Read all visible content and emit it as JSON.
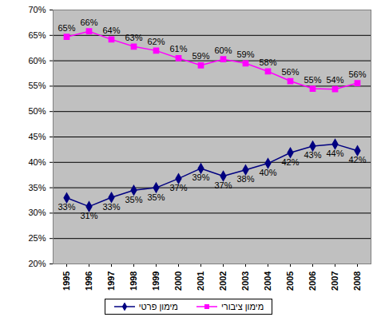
{
  "chart_data": {
    "type": "line",
    "x": [
      "1995",
      "1996",
      "1997",
      "1998",
      "1999",
      "2000",
      "2001",
      "2002",
      "2003",
      "2004",
      "2005",
      "2006",
      "2007",
      "2008"
    ],
    "series": [
      {
        "name": "מימון פרטי",
        "color": "#000080",
        "marker": "diamond",
        "values": [
          33.0,
          31.3,
          33.1,
          34.5,
          35.0,
          36.8,
          38.8,
          37.3,
          38.5,
          39.8,
          41.9,
          43.2,
          43.6,
          42.3
        ],
        "value_labels": [
          "33%",
          "31%",
          "33%",
          "35%",
          "35%",
          "37%",
          "39%",
          "37%",
          "38%",
          "40%",
          "42%",
          "43%",
          "44%",
          "42%"
        ]
      },
      {
        "name": "מימון ציבורי",
        "color": "#ff00ff",
        "marker": "square",
        "values": [
          64.7,
          65.8,
          64.2,
          62.8,
          62.0,
          60.5,
          59.1,
          60.3,
          59.5,
          57.9,
          56.0,
          54.5,
          54.4,
          55.6
        ],
        "value_labels": [
          "65%",
          "66%",
          "64%",
          "63%",
          "62%",
          "61%",
          "59%",
          "60%",
          "59%",
          "58%",
          "56%",
          "55%",
          "54%",
          "56%"
        ]
      }
    ],
    "ylim": [
      20,
      70
    ],
    "yticks": [
      {
        "value": 20,
        "label": "20%"
      },
      {
        "value": 25,
        "label": "25%"
      },
      {
        "value": 30,
        "label": "30%"
      },
      {
        "value": 35,
        "label": "35%"
      },
      {
        "value": 40,
        "label": "40%"
      },
      {
        "value": 45,
        "label": "45%"
      },
      {
        "value": 50,
        "label": "50%"
      },
      {
        "value": 55,
        "label": "55%"
      },
      {
        "value": 60,
        "label": "60%"
      },
      {
        "value": 65,
        "label": "65%"
      },
      {
        "value": 70,
        "label": "70%"
      }
    ],
    "grid": true,
    "data_labels": true,
    "legend": "bottom"
  }
}
